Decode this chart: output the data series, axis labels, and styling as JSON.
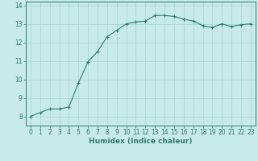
{
  "x": [
    0,
    1,
    2,
    3,
    4,
    5,
    6,
    7,
    8,
    9,
    10,
    11,
    12,
    13,
    14,
    15,
    16,
    17,
    18,
    19,
    20,
    21,
    22,
    23
  ],
  "y": [
    8.0,
    8.2,
    8.4,
    8.4,
    8.5,
    9.8,
    10.95,
    11.5,
    12.3,
    12.65,
    13.0,
    13.1,
    13.15,
    13.45,
    13.45,
    13.4,
    13.25,
    13.15,
    12.9,
    12.8,
    13.0,
    12.85,
    12.95,
    13.0
  ],
  "line_color": "#2e7d6e",
  "marker": "+",
  "marker_size": 3,
  "marker_linewidth": 0.8,
  "bg_color": "#c8eae8",
  "grid_color": "#a8d4d0",
  "xlabel": "Humidex (Indice chaleur)",
  "xlim": [
    -0.5,
    23.5
  ],
  "ylim": [
    7.5,
    14.2
  ],
  "yticks": [
    8,
    9,
    10,
    11,
    12,
    13,
    14
  ],
  "xticks": [
    0,
    1,
    2,
    3,
    4,
    5,
    6,
    7,
    8,
    9,
    10,
    11,
    12,
    13,
    14,
    15,
    16,
    17,
    18,
    19,
    20,
    21,
    22,
    23
  ],
  "tick_color": "#2e7d6e",
  "label_color": "#2e7d6e",
  "spine_color": "#2e7d6e",
  "tick_fontsize": 5.5,
  "xlabel_fontsize": 6.5,
  "linewidth": 0.8
}
